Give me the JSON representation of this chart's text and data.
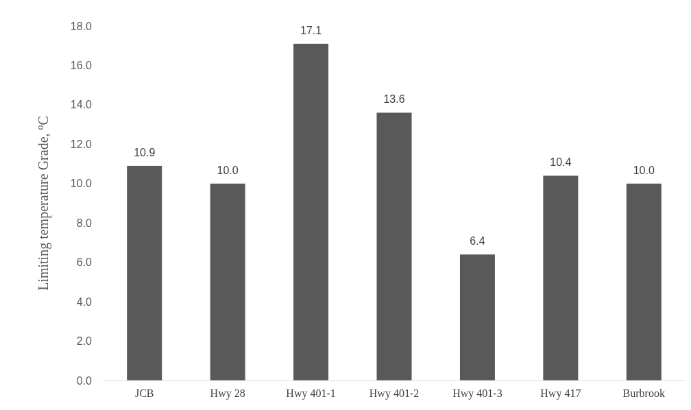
{
  "chart_data": {
    "type": "bar",
    "ylabel": "Limiting temperature Grade, $^{o}$C",
    "categories": [
      "JCB",
      "Hwy 28",
      "Hwy 401-1",
      "Hwy 401-2",
      "Hwy 401-3",
      "Hwy 417",
      "Burbrook"
    ],
    "values": [
      10.9,
      10.0,
      17.1,
      13.6,
      6.4,
      10.4,
      10.0
    ],
    "color": "#595959",
    "ylim": [
      0,
      18
    ],
    "yticks": [
      {
        "value": 0,
        "label": "0.0"
      },
      {
        "value": 2,
        "label": "2.0"
      },
      {
        "value": 4,
        "label": "4.0"
      },
      {
        "value": 6,
        "label": "6.0"
      },
      {
        "value": 8,
        "label": "8.0"
      },
      {
        "value": 10,
        "label": "10.0"
      },
      {
        "value": 12,
        "label": "12.0"
      },
      {
        "value": 14,
        "label": "14.0"
      },
      {
        "value": 16,
        "label": "16.0"
      },
      {
        "value": 18,
        "label": "18.0"
      }
    ],
    "value_labels": [
      "10.9",
      "10.0",
      "17.1",
      "13.6",
      "6.4",
      "10.4",
      "10.0"
    ]
  }
}
